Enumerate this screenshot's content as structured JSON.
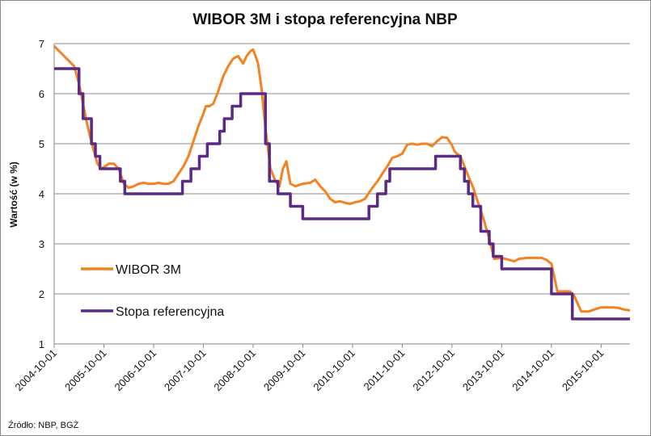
{
  "chart_data": {
    "type": "line",
    "title": "WIBOR 3M i stopa referencyjna NBP",
    "xlabel": "",
    "ylabel": "Wartość (w %)",
    "ylim": [
      1,
      7
    ],
    "yticks": [
      1,
      2,
      3,
      4,
      5,
      6,
      7
    ],
    "xlim": [
      2004.75,
      2016.33
    ],
    "xticks": [
      {
        "x": 2004.75,
        "label": "2004-10-01"
      },
      {
        "x": 2005.75,
        "label": "2005-10-01"
      },
      {
        "x": 2006.75,
        "label": "2006-10-01"
      },
      {
        "x": 2007.75,
        "label": "2007-10-01"
      },
      {
        "x": 2008.75,
        "label": "2008-10-01"
      },
      {
        "x": 2009.75,
        "label": "2009-10-01"
      },
      {
        "x": 2010.75,
        "label": "2010-10-01"
      },
      {
        "x": 2011.75,
        "label": "2011-10-01"
      },
      {
        "x": 2012.75,
        "label": "2012-10-01"
      },
      {
        "x": 2013.75,
        "label": "2013-10-01"
      },
      {
        "x": 2014.75,
        "label": "2014-10-01"
      },
      {
        "x": 2015.75,
        "label": "2015-10-01"
      }
    ],
    "grid": "horizontal",
    "legend_position": "lower-left",
    "series": [
      {
        "name": "WIBOR 3M",
        "color": "#F58220",
        "step": false,
        "x": [
          2004.75,
          2004.85,
          2004.95,
          2005.05,
          2005.15,
          2005.25,
          2005.32,
          2005.4,
          2005.47,
          2005.55,
          2005.62,
          2005.7,
          2005.78,
          2005.85,
          2005.95,
          2006.05,
          2006.15,
          2006.25,
          2006.35,
          2006.45,
          2006.55,
          2006.65,
          2006.75,
          2006.85,
          2006.95,
          2007.05,
          2007.15,
          2007.25,
          2007.35,
          2007.45,
          2007.55,
          2007.65,
          2007.75,
          2007.8,
          2007.87,
          2007.95,
          2008.05,
          2008.15,
          2008.25,
          2008.35,
          2008.45,
          2008.55,
          2008.62,
          2008.7,
          2008.75,
          2008.8,
          2008.85,
          2008.92,
          2009.0,
          2009.1,
          2009.2,
          2009.28,
          2009.35,
          2009.42,
          2009.5,
          2009.6,
          2009.75,
          2009.9,
          2010.0,
          2010.1,
          2010.2,
          2010.3,
          2010.4,
          2010.5,
          2010.6,
          2010.7,
          2010.8,
          2010.9,
          2011.0,
          2011.08,
          2011.15,
          2011.25,
          2011.35,
          2011.45,
          2011.55,
          2011.65,
          2011.75,
          2011.85,
          2011.95,
          2012.05,
          2012.15,
          2012.25,
          2012.35,
          2012.45,
          2012.55,
          2012.65,
          2012.75,
          2012.8,
          2012.85,
          2012.92,
          2013.0,
          2013.1,
          2013.18,
          2013.25,
          2013.32,
          2013.4,
          2013.5,
          2013.6,
          2013.75,
          2013.9,
          2014.0,
          2014.1,
          2014.25,
          2014.4,
          2014.55,
          2014.65,
          2014.75,
          2014.8,
          2014.87,
          2014.95,
          2015.05,
          2015.12,
          2015.2,
          2015.35,
          2015.5,
          2015.65,
          2015.75,
          2015.9,
          2016.0,
          2016.1,
          2016.2,
          2016.33
        ],
        "values": [
          6.95,
          6.85,
          6.75,
          6.65,
          6.55,
          6.2,
          5.85,
          5.45,
          5.15,
          4.85,
          4.6,
          4.5,
          4.55,
          4.6,
          4.6,
          4.5,
          4.2,
          4.12,
          4.15,
          4.2,
          4.22,
          4.2,
          4.2,
          4.22,
          4.2,
          4.2,
          4.25,
          4.4,
          4.55,
          4.75,
          5.05,
          5.35,
          5.6,
          5.75,
          5.75,
          5.8,
          6.05,
          6.35,
          6.55,
          6.7,
          6.75,
          6.6,
          6.75,
          6.85,
          6.88,
          6.75,
          6.6,
          6.1,
          5.3,
          4.5,
          4.25,
          4.15,
          4.5,
          4.65,
          4.2,
          4.15,
          4.2,
          4.22,
          4.28,
          4.15,
          4.05,
          3.9,
          3.83,
          3.85,
          3.82,
          3.8,
          3.83,
          3.85,
          3.9,
          4.02,
          4.12,
          4.25,
          4.4,
          4.55,
          4.72,
          4.75,
          4.8,
          4.98,
          5.0,
          4.98,
          5.0,
          5.0,
          4.95,
          5.05,
          5.13,
          5.12,
          4.97,
          4.85,
          4.8,
          4.75,
          4.55,
          4.3,
          4.12,
          3.9,
          3.7,
          3.45,
          3.1,
          2.7,
          2.72,
          2.68,
          2.65,
          2.7,
          2.72,
          2.72,
          2.72,
          2.68,
          2.6,
          2.38,
          2.05,
          2.05,
          2.05,
          2.05,
          1.98,
          1.65,
          1.65,
          1.7,
          1.73,
          1.73,
          1.73,
          1.72,
          1.69,
          1.67
        ]
      },
      {
        "name": "Stopa referencyjna",
        "color": "#5B2A86",
        "step": true,
        "x": [
          2004.75,
          2005.25,
          2005.33,
          2005.5,
          2005.58,
          2005.67,
          2005.75,
          2006.08,
          2006.17,
          2007.33,
          2007.5,
          2007.67,
          2007.83,
          2007.92,
          2008.08,
          2008.17,
          2008.33,
          2008.5,
          2008.92,
          2009.0,
          2009.08,
          2009.25,
          2009.5,
          2009.75,
          2011.08,
          2011.25,
          2011.42,
          2011.5,
          2012.42,
          2012.92,
          2013.0,
          2013.08,
          2013.17,
          2013.33,
          2013.5,
          2013.58,
          2013.75,
          2014.75,
          2014.92,
          2015.17,
          2015.75,
          2016.33
        ],
        "values": [
          6.5,
          6.0,
          5.5,
          5.0,
          4.75,
          4.5,
          4.5,
          4.25,
          4.0,
          4.25,
          4.5,
          4.75,
          5.0,
          5.0,
          5.25,
          5.5,
          5.75,
          6.0,
          6.0,
          5.0,
          4.25,
          4.0,
          3.75,
          3.5,
          3.75,
          4.0,
          4.25,
          4.5,
          4.75,
          4.5,
          4.25,
          4.0,
          3.75,
          3.25,
          3.0,
          2.75,
          2.5,
          2.0,
          2.0,
          1.5,
          1.5,
          1.5
        ]
      }
    ],
    "source": "Źródło: NBP, BGŻ"
  }
}
